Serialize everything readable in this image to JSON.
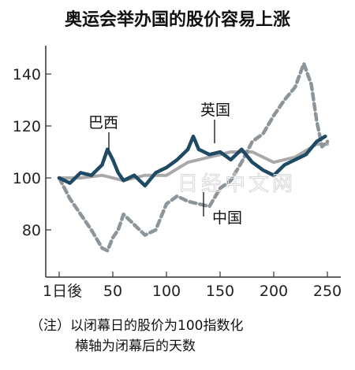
{
  "chart_data": {
    "type": "line",
    "title": "奥运会举办国的股价容易上涨",
    "xlabel": "",
    "ylabel": "",
    "xlim": [
      0,
      260
    ],
    "ylim": [
      65,
      152
    ],
    "x_ticks": [
      0,
      50,
      100,
      150,
      200,
      250
    ],
    "x_tick_labels": [
      "1日後",
      "50",
      "100",
      "150",
      "200",
      "250"
    ],
    "y_ticks": [
      80,
      100,
      120,
      140
    ],
    "y_tick_labels": [
      "80",
      "100",
      "120",
      "140"
    ],
    "grid": false,
    "series": [
      {
        "name": "巴西",
        "color": "#1f4a63",
        "style": "solid",
        "x": [
          0,
          10,
          20,
          30,
          40,
          45,
          50,
          55,
          60,
          70,
          80,
          90,
          100,
          110,
          120,
          125,
          130,
          140,
          150,
          160,
          170,
          180,
          190,
          200,
          210,
          220,
          230,
          240,
          248
        ],
        "values": [
          100,
          98,
          102,
          101,
          105,
          111,
          107,
          102,
          99,
          101,
          97,
          102,
          104,
          107,
          111,
          116,
          111,
          109,
          110,
          107,
          111,
          106,
          103,
          101,
          105,
          107,
          109,
          114,
          116
        ]
      },
      {
        "name": "英国",
        "color": "#a9a9a9",
        "style": "solid",
        "x": [
          0,
          20,
          40,
          60,
          80,
          100,
          120,
          140,
          160,
          180,
          200,
          220,
          240,
          250
        ],
        "values": [
          100,
          100,
          101,
          99,
          101,
          101,
          106,
          108,
          110,
          110,
          106,
          108,
          113,
          113
        ]
      },
      {
        "name": "中国",
        "color": "#8d959a",
        "style": "dashed",
        "x": [
          0,
          10,
          20,
          30,
          40,
          45,
          50,
          55,
          60,
          70,
          80,
          90,
          100,
          110,
          120,
          130,
          140,
          150,
          160,
          170,
          180,
          190,
          200,
          210,
          220,
          228,
          235,
          240,
          245,
          250
        ],
        "values": [
          100,
          92,
          86,
          80,
          73,
          72,
          77,
          80,
          86,
          82,
          78,
          80,
          90,
          93,
          91,
          90,
          89,
          96,
          99,
          106,
          114,
          117,
          124,
          130,
          135,
          144,
          136,
          122,
          112,
          114
        ]
      }
    ]
  },
  "labels": {
    "brazil": "巴西",
    "uk": "英国",
    "china": "中国"
  },
  "notes": {
    "line1": "（注）以闭幕日的股价为100指数化",
    "line2": "横轴为闭幕后的天数"
  },
  "watermark": "日经中文网"
}
